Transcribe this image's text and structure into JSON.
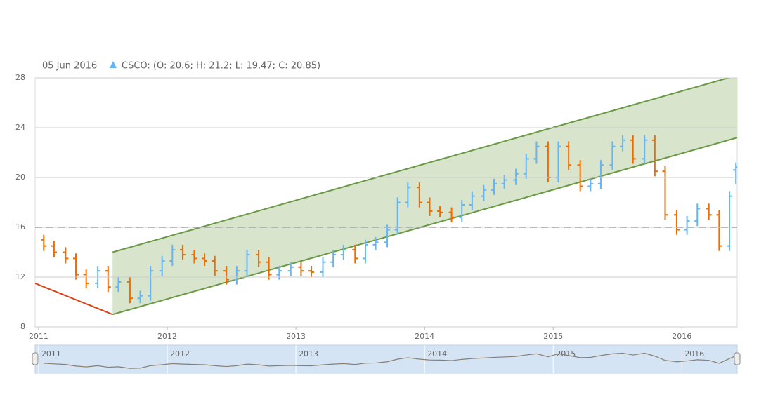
{
  "chart_data": {
    "type": "ohlc",
    "legend_date": "05 Jun 2016",
    "legend_text": "CSCO: (O: 20.6; H: 21.2; L: 19.47; C: 20.85)",
    "series": [
      {
        "name": "CSCO",
        "up_color": "#64b5f6",
        "down_color": "#ef6c00",
        "x": [
          2011.04,
          2011.12,
          2011.21,
          2011.29,
          2011.37,
          2011.46,
          2011.54,
          2011.62,
          2011.71,
          2011.79,
          2011.87,
          2011.96,
          2012.04,
          2012.12,
          2012.21,
          2012.29,
          2012.37,
          2012.46,
          2012.54,
          2012.62,
          2012.71,
          2012.79,
          2012.87,
          2012.96,
          2013.04,
          2013.12,
          2013.21,
          2013.29,
          2013.37,
          2013.46,
          2013.54,
          2013.62,
          2013.71,
          2013.79,
          2013.87,
          2013.96,
          2014.04,
          2014.12,
          2014.21,
          2014.29,
          2014.37,
          2014.46,
          2014.54,
          2014.62,
          2014.71,
          2014.79,
          2014.87,
          2014.96,
          2015.04,
          2015.12,
          2015.21,
          2015.29,
          2015.37,
          2015.46,
          2015.54,
          2015.62,
          2015.71,
          2015.79,
          2015.87,
          2015.96,
          2016.04,
          2016.12,
          2016.21,
          2016.29,
          2016.37,
          2016.42
        ],
        "open": [
          15,
          14.5,
          14,
          13.5,
          12.2,
          11.5,
          12.5,
          11.2,
          11.6,
          10.3,
          10.5,
          12.5,
          13.3,
          14.2,
          13.8,
          13.5,
          13.3,
          12.5,
          11.8,
          12.5,
          13.8,
          13.2,
          12.2,
          12.5,
          12.8,
          12.5,
          12.4,
          13.2,
          13.8,
          14.2,
          13.5,
          14.6,
          14.8,
          15.8,
          18,
          19.2,
          18,
          17.3,
          17.2,
          16.8,
          17.8,
          18.5,
          19,
          19.5,
          19.8,
          20.3,
          21.5,
          22.5,
          20,
          22.5,
          21,
          19.3,
          19.5,
          21,
          22.5,
          23,
          21.5,
          23,
          20.5,
          17,
          15.8,
          16.5,
          17.5,
          17,
          14.5,
          20.6
        ],
        "high": [
          15.4,
          14.9,
          14.4,
          13.9,
          12.6,
          12.9,
          12.9,
          12,
          12,
          10.9,
          12.9,
          13.7,
          14.6,
          14.6,
          14.2,
          13.9,
          13.7,
          12.9,
          12.9,
          14.2,
          14.2,
          13.6,
          12.9,
          13.2,
          13.2,
          12.9,
          13.6,
          14.2,
          14.6,
          14.6,
          15,
          15.2,
          16.2,
          18.4,
          19.6,
          19.6,
          18.4,
          17.7,
          17.6,
          18.2,
          18.9,
          19.4,
          19.9,
          20.2,
          20.7,
          21.9,
          22.9,
          22.9,
          22.9,
          22.9,
          21.4,
          19.9,
          21.4,
          22.9,
          23.4,
          23.4,
          23.4,
          23.4,
          20.9,
          17.4,
          16.9,
          17.9,
          17.9,
          17.4,
          18.9,
          21.2
        ],
        "low": [
          14.1,
          13.6,
          13.1,
          11.8,
          11.1,
          11.1,
          10.8,
          10.8,
          9.9,
          9.9,
          10.1,
          12.1,
          12.9,
          13.4,
          13.1,
          12.9,
          12.1,
          11.4,
          11.4,
          12.1,
          12.8,
          11.8,
          11.8,
          12.1,
          12.1,
          12,
          12,
          12.8,
          13.4,
          13.1,
          13.1,
          14.2,
          14.4,
          15.4,
          17.6,
          17.6,
          16.9,
          16.8,
          16.4,
          16.4,
          17.4,
          18.1,
          18.6,
          19.1,
          19.4,
          19.9,
          21.1,
          19.6,
          19.6,
          20.6,
          18.9,
          18.9,
          19.1,
          20.6,
          22.1,
          21.1,
          21.1,
          20.1,
          16.6,
          15.4,
          15.4,
          16.1,
          16.6,
          14.1,
          14.1,
          19.47
        ],
        "close": [
          14.5,
          14,
          13.5,
          12.2,
          11.5,
          12.5,
          11.2,
          11.6,
          10.3,
          10.5,
          12.5,
          13.3,
          14.2,
          13.8,
          13.5,
          13.3,
          12.5,
          11.8,
          12.5,
          13.8,
          13.2,
          12.2,
          12.5,
          12.8,
          12.5,
          12.4,
          13.2,
          13.8,
          14.2,
          13.5,
          14.6,
          14.8,
          15.8,
          18,
          19.2,
          18,
          17.3,
          17.2,
          16.8,
          17.8,
          18.5,
          19,
          19.5,
          19.8,
          20.3,
          21.5,
          22.5,
          20,
          22.5,
          21,
          19.3,
          19.5,
          21,
          22.5,
          23,
          21.5,
          23,
          20.5,
          17,
          15.8,
          16.5,
          17.5,
          17,
          14.5,
          18.5,
          20.85
        ]
      }
    ],
    "xlim": [
      2010.973,
      2016.43
    ],
    "xticks": [
      2011,
      2012,
      2013,
      2014,
      2015,
      2016
    ],
    "ylim": [
      8,
      28
    ],
    "yticks": [
      8,
      12,
      16,
      20,
      24,
      28
    ],
    "grid": true,
    "trend_line": {
      "x": [
        2010.973,
        2011.575
      ],
      "y": [
        11.5,
        9
      ],
      "color": "#d84315"
    },
    "channel": {
      "x": [
        2011.575,
        2016.43
      ],
      "lower": [
        9,
        23.2
      ],
      "upper": [
        14,
        28.2
      ],
      "color": "#6a9a45",
      "fill": "#d4e2c6"
    },
    "horizontal_line": {
      "y": 16,
      "color": "#555"
    }
  }
}
